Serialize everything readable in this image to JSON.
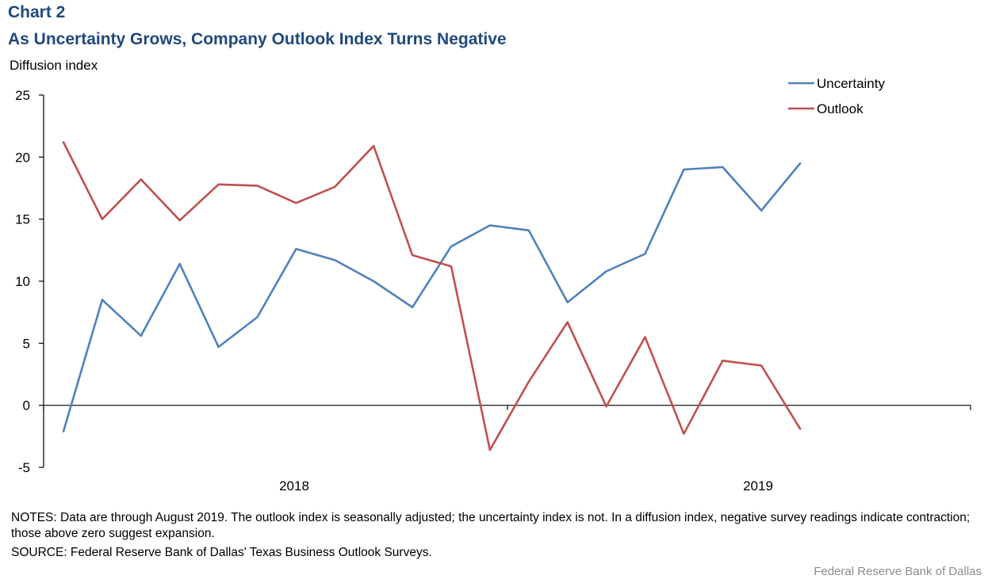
{
  "header": {
    "chart_label": "Chart 2",
    "title": "As Uncertainty Grows, Company Outlook Index Turns Negative"
  },
  "chart_data": {
    "type": "line",
    "title": "As Uncertainty Grows, Company Outlook Index Turns Negative",
    "ylabel": "Diffusion index",
    "xlabel": "",
    "ylim": [
      -5,
      25
    ],
    "yticks": [
      -5,
      0,
      5,
      10,
      15,
      20,
      25
    ],
    "x_year_labels": [
      "2018",
      "2019"
    ],
    "colors": {
      "Uncertainty": "#4F81BD",
      "Outlook": "#C0504D"
    },
    "series": [
      {
        "name": "Uncertainty",
        "values": [
          -2.1,
          8.5,
          5.6,
          11.4,
          4.7,
          7.1,
          12.6,
          11.7,
          10.0,
          7.9,
          12.8,
          14.5,
          14.1,
          8.3,
          10.8,
          12.2,
          19.0,
          19.2,
          15.7,
          19.5
        ]
      },
      {
        "name": "Outlook",
        "values": [
          21.2,
          15.0,
          18.2,
          14.9,
          17.8,
          17.7,
          16.3,
          17.6,
          20.9,
          12.1,
          11.2,
          -3.6,
          1.9,
          6.7,
          -0.1,
          5.5,
          -2.3,
          3.6,
          3.2,
          -1.9
        ]
      }
    ],
    "legend": {
      "placement": "top-right",
      "entries": [
        "Uncertainty",
        "Outlook"
      ]
    }
  },
  "notes": "NOTES: Data are through August 2019. The outlook index is seasonally adjusted; the uncertainty index is not. In a diffusion index, negative survey readings indicate contraction; those above zero suggest expansion.",
  "source": "SOURCE: Federal Reserve Bank of Dallas' Texas Business Outlook Surveys.",
  "credit": "Federal Reserve Bank of Dallas"
}
